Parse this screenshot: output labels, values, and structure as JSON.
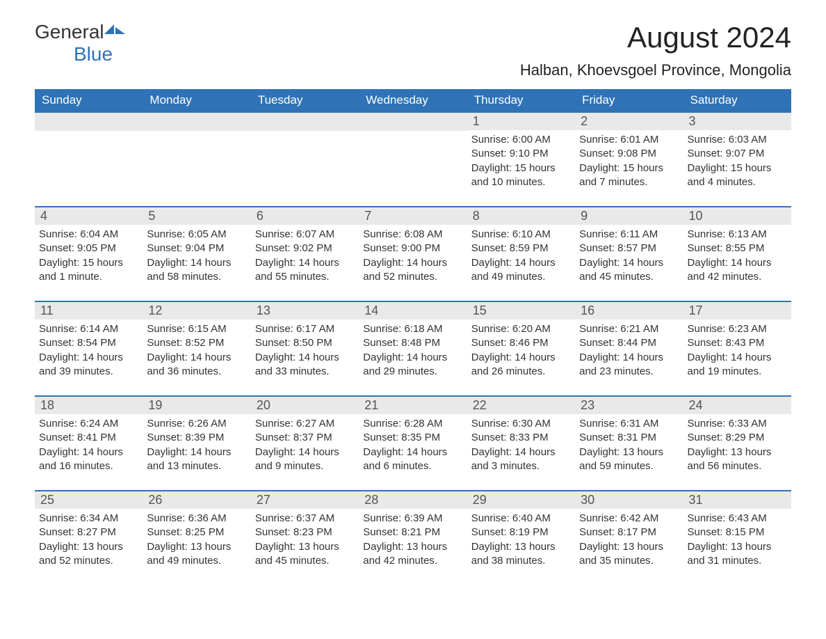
{
  "logo": {
    "general": "General",
    "blue": "Blue"
  },
  "title": "August 2024",
  "location": "Halban, Khoevsgoel Province, Mongolia",
  "colors": {
    "brand_blue": "#2f73b6",
    "header_bg": "#2f73b6",
    "header_text": "#ffffff",
    "daynum_bg": "#e9e9e9",
    "daynum_text": "#555555",
    "body_text": "#333333",
    "background": "#ffffff"
  },
  "dow": [
    "Sunday",
    "Monday",
    "Tuesday",
    "Wednesday",
    "Thursday",
    "Friday",
    "Saturday"
  ],
  "weeks": [
    [
      null,
      null,
      null,
      null,
      {
        "d": "1",
        "sr": "6:00 AM",
        "ss": "9:10 PM",
        "dl": "15 hours and 10 minutes."
      },
      {
        "d": "2",
        "sr": "6:01 AM",
        "ss": "9:08 PM",
        "dl": "15 hours and 7 minutes."
      },
      {
        "d": "3",
        "sr": "6:03 AM",
        "ss": "9:07 PM",
        "dl": "15 hours and 4 minutes."
      }
    ],
    [
      {
        "d": "4",
        "sr": "6:04 AM",
        "ss": "9:05 PM",
        "dl": "15 hours and 1 minute."
      },
      {
        "d": "5",
        "sr": "6:05 AM",
        "ss": "9:04 PM",
        "dl": "14 hours and 58 minutes."
      },
      {
        "d": "6",
        "sr": "6:07 AM",
        "ss": "9:02 PM",
        "dl": "14 hours and 55 minutes."
      },
      {
        "d": "7",
        "sr": "6:08 AM",
        "ss": "9:00 PM",
        "dl": "14 hours and 52 minutes."
      },
      {
        "d": "8",
        "sr": "6:10 AM",
        "ss": "8:59 PM",
        "dl": "14 hours and 49 minutes."
      },
      {
        "d": "9",
        "sr": "6:11 AM",
        "ss": "8:57 PM",
        "dl": "14 hours and 45 minutes."
      },
      {
        "d": "10",
        "sr": "6:13 AM",
        "ss": "8:55 PM",
        "dl": "14 hours and 42 minutes."
      }
    ],
    [
      {
        "d": "11",
        "sr": "6:14 AM",
        "ss": "8:54 PM",
        "dl": "14 hours and 39 minutes."
      },
      {
        "d": "12",
        "sr": "6:15 AM",
        "ss": "8:52 PM",
        "dl": "14 hours and 36 minutes."
      },
      {
        "d": "13",
        "sr": "6:17 AM",
        "ss": "8:50 PM",
        "dl": "14 hours and 33 minutes."
      },
      {
        "d": "14",
        "sr": "6:18 AM",
        "ss": "8:48 PM",
        "dl": "14 hours and 29 minutes."
      },
      {
        "d": "15",
        "sr": "6:20 AM",
        "ss": "8:46 PM",
        "dl": "14 hours and 26 minutes."
      },
      {
        "d": "16",
        "sr": "6:21 AM",
        "ss": "8:44 PM",
        "dl": "14 hours and 23 minutes."
      },
      {
        "d": "17",
        "sr": "6:23 AM",
        "ss": "8:43 PM",
        "dl": "14 hours and 19 minutes."
      }
    ],
    [
      {
        "d": "18",
        "sr": "6:24 AM",
        "ss": "8:41 PM",
        "dl": "14 hours and 16 minutes."
      },
      {
        "d": "19",
        "sr": "6:26 AM",
        "ss": "8:39 PM",
        "dl": "14 hours and 13 minutes."
      },
      {
        "d": "20",
        "sr": "6:27 AM",
        "ss": "8:37 PM",
        "dl": "14 hours and 9 minutes."
      },
      {
        "d": "21",
        "sr": "6:28 AM",
        "ss": "8:35 PM",
        "dl": "14 hours and 6 minutes."
      },
      {
        "d": "22",
        "sr": "6:30 AM",
        "ss": "8:33 PM",
        "dl": "14 hours and 3 minutes."
      },
      {
        "d": "23",
        "sr": "6:31 AM",
        "ss": "8:31 PM",
        "dl": "13 hours and 59 minutes."
      },
      {
        "d": "24",
        "sr": "6:33 AM",
        "ss": "8:29 PM",
        "dl": "13 hours and 56 minutes."
      }
    ],
    [
      {
        "d": "25",
        "sr": "6:34 AM",
        "ss": "8:27 PM",
        "dl": "13 hours and 52 minutes."
      },
      {
        "d": "26",
        "sr": "6:36 AM",
        "ss": "8:25 PM",
        "dl": "13 hours and 49 minutes."
      },
      {
        "d": "27",
        "sr": "6:37 AM",
        "ss": "8:23 PM",
        "dl": "13 hours and 45 minutes."
      },
      {
        "d": "28",
        "sr": "6:39 AM",
        "ss": "8:21 PM",
        "dl": "13 hours and 42 minutes."
      },
      {
        "d": "29",
        "sr": "6:40 AM",
        "ss": "8:19 PM",
        "dl": "13 hours and 38 minutes."
      },
      {
        "d": "30",
        "sr": "6:42 AM",
        "ss": "8:17 PM",
        "dl": "13 hours and 35 minutes."
      },
      {
        "d": "31",
        "sr": "6:43 AM",
        "ss": "8:15 PM",
        "dl": "13 hours and 31 minutes."
      }
    ]
  ],
  "labels": {
    "sunrise": "Sunrise: ",
    "sunset": "Sunset: ",
    "daylight": "Daylight: "
  }
}
